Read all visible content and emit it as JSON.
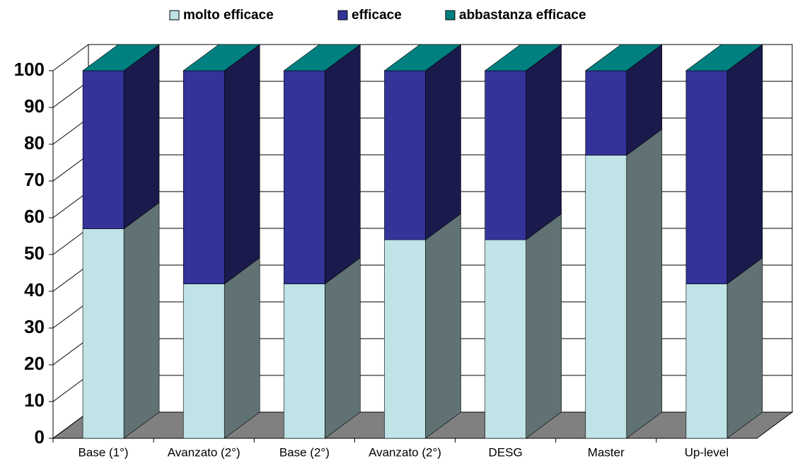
{
  "chart_data": {
    "type": "bar3d",
    "stacked": true,
    "categories": [
      "Base (1°)",
      "Avanzato (2°)",
      "Base (2°)",
      "Avanzato (2°)",
      "DESG",
      "Master",
      "Up-level"
    ],
    "series": [
      {
        "name": "molto efficace",
        "color": "#bfe3e6",
        "values": [
          57,
          42,
          42,
          54,
          54,
          77,
          42
        ]
      },
      {
        "name": "efficace",
        "color": "#333399",
        "values": [
          43,
          58,
          58,
          46,
          46,
          23,
          58
        ]
      },
      {
        "name": "abbastanza efficace",
        "color": "#008080",
        "values": [
          0,
          0,
          0,
          0,
          0,
          0,
          0
        ]
      }
    ],
    "ylim": [
      0,
      100
    ],
    "yticks": [
      0,
      10,
      20,
      30,
      40,
      50,
      60,
      70,
      80,
      90,
      100
    ],
    "grid": true,
    "legend": "top"
  }
}
